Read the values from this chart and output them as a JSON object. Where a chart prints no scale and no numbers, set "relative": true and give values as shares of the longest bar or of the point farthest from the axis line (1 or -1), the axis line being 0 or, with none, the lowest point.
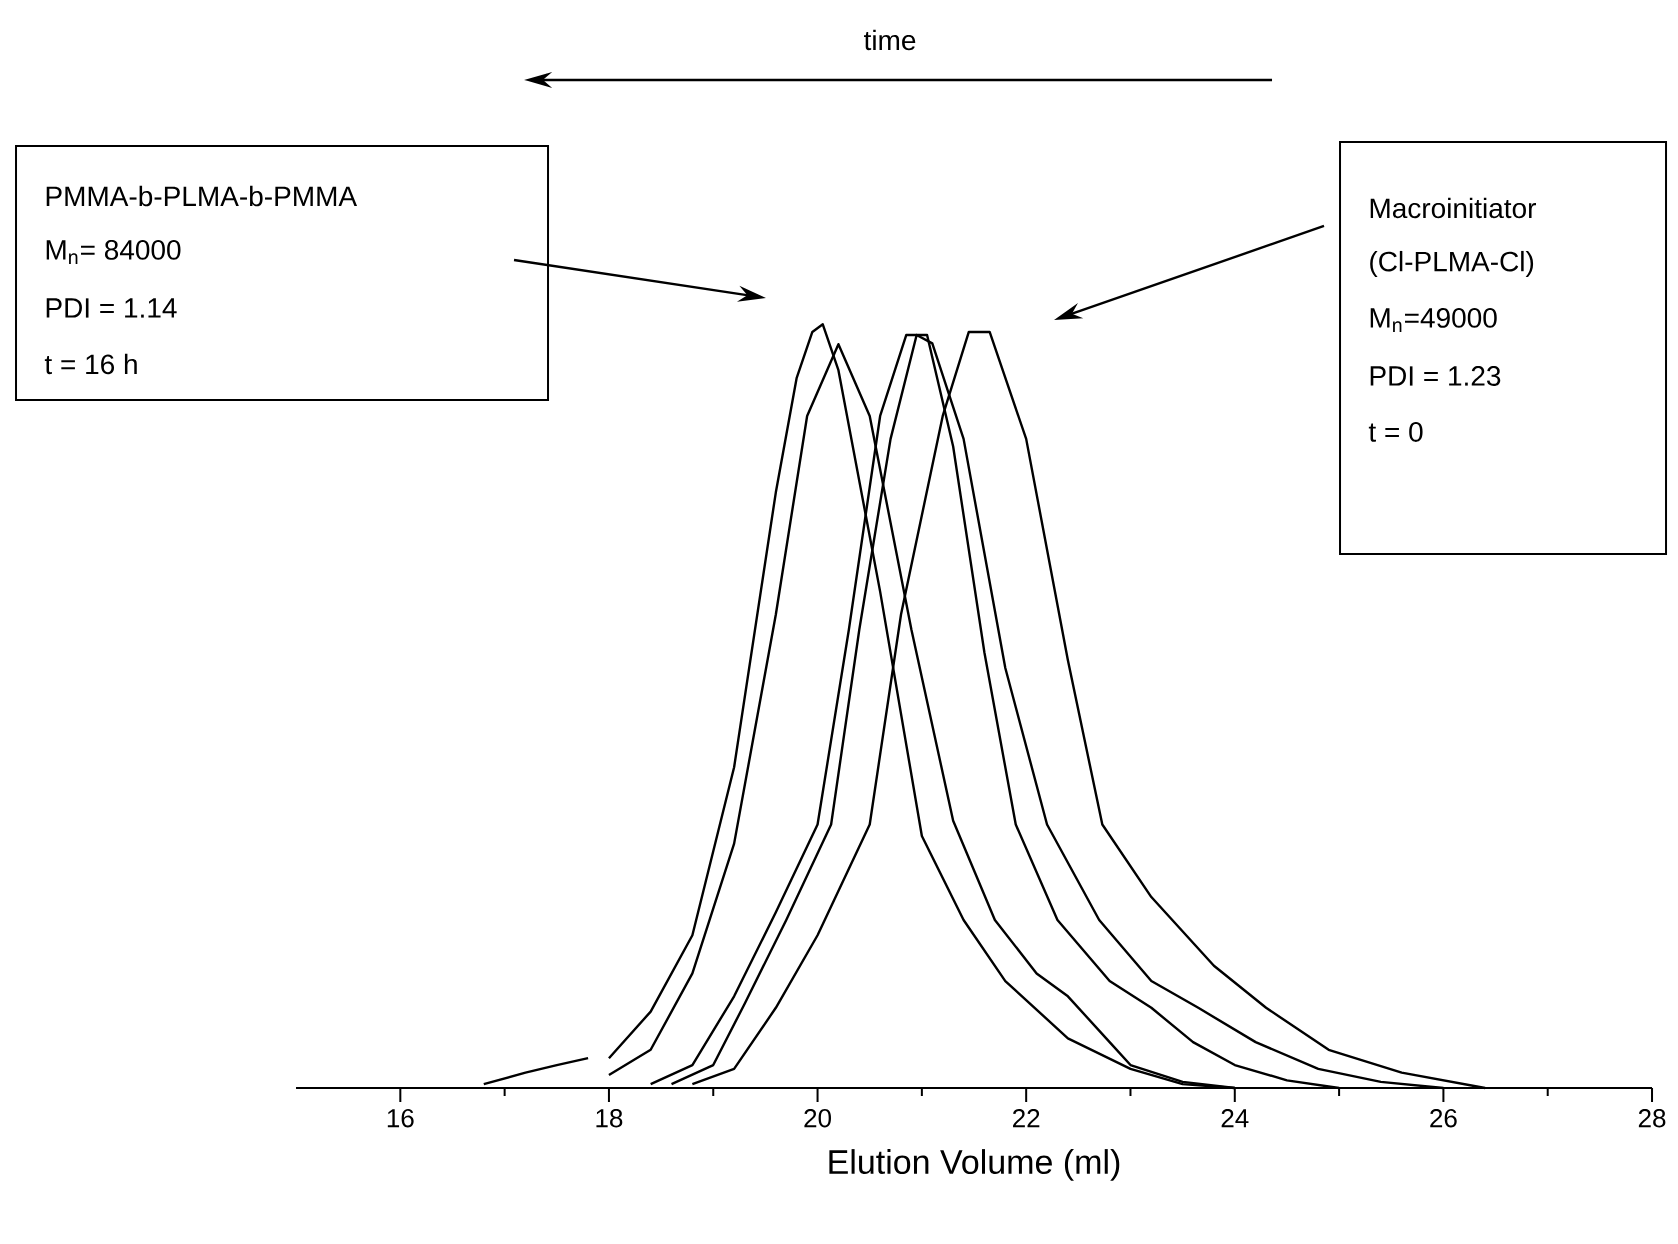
{
  "chart_data": {
    "type": "line",
    "relative": true,
    "xlabel": "Elution Volume (ml)",
    "xlim": [
      15,
      28
    ],
    "xticks": [
      16,
      18,
      20,
      22,
      24,
      26,
      28
    ],
    "grid": false,
    "marker": "none",
    "line_style": "solid",
    "series": [
      {
        "color": "#000000",
        "x": [
          16.8,
          17.2,
          17.5,
          17.8,
          17.9,
          18.0,
          18.4,
          18.8,
          19.2,
          19.6,
          19.8,
          19.95,
          20.05,
          20.2,
          20.6,
          21.0,
          21.4,
          21.8,
          22.4,
          23.0,
          23.5,
          24.0
        ],
        "values": [
          0.005,
          0.02,
          0.03,
          0.039,
          null,
          0.039,
          0.1,
          0.2,
          0.42,
          0.78,
          0.93,
          0.99,
          1.0,
          0.94,
          0.65,
          0.33,
          0.22,
          0.14,
          0.065,
          0.025,
          0.005,
          0
        ]
      },
      {
        "color": "#000000",
        "x": [
          18.0,
          18.4,
          18.8,
          19.2,
          19.6,
          19.9,
          20.2,
          20.5,
          20.9,
          21.3,
          21.7,
          22.1,
          22.4,
          22.8,
          23.0,
          23.5,
          24.0
        ],
        "values": [
          0.017,
          0.05,
          0.15,
          0.32,
          0.62,
          0.88,
          0.974,
          0.88,
          0.6,
          0.35,
          0.22,
          0.15,
          0.12,
          0.06,
          0.03,
          0.008,
          0
        ]
      },
      {
        "color": "#000000",
        "x": [
          18.4,
          18.8,
          19.2,
          19.6,
          20.0,
          20.3,
          20.6,
          20.85,
          21.05,
          21.3,
          21.6,
          21.9,
          22.3,
          22.8,
          23.2,
          23.6,
          24.0,
          24.5,
          25.0
        ],
        "values": [
          0.005,
          0.03,
          0.12,
          0.23,
          0.345,
          0.6,
          0.88,
          0.986,
          0.986,
          0.84,
          0.57,
          0.345,
          0.22,
          0.14,
          0.105,
          0.06,
          0.03,
          0.01,
          0
        ]
      },
      {
        "color": "#000000",
        "x": [
          18.6,
          19.0,
          19.3,
          19.7,
          20.13,
          20.4,
          20.7,
          20.95,
          21.1,
          21.4,
          21.8,
          22.2,
          22.7,
          23.2,
          23.65,
          24.2,
          24.8,
          25.4,
          26.0
        ],
        "values": [
          0.005,
          0.03,
          0.11,
          0.22,
          0.345,
          0.6,
          0.85,
          0.986,
          0.975,
          0.85,
          0.55,
          0.345,
          0.22,
          0.14,
          0.105,
          0.06,
          0.025,
          0.008,
          0
        ]
      },
      {
        "color": "#000000",
        "x": [
          18.8,
          19.2,
          19.6,
          20.0,
          20.5,
          20.8,
          21.2,
          21.45,
          21.65,
          22.0,
          22.4,
          22.73,
          23.2,
          23.8,
          24.3,
          24.9,
          25.6,
          26.4
        ],
        "values": [
          0.005,
          0.025,
          0.105,
          0.2,
          0.345,
          0.62,
          0.88,
          0.99,
          0.99,
          0.85,
          0.56,
          0.345,
          0.25,
          0.16,
          0.105,
          0.05,
          0.02,
          0
        ]
      }
    ],
    "annotations": [
      "PMMA-b-PLMA-b-PMMA",
      "M$_{n}$= 84000",
      "PDI = 1.14",
      "t = 16 h",
      "Macroinitiator",
      "(Cl-PLMA-Cl)",
      "M$_{n}$=49000",
      "PDI = 1.23",
      "t = 0",
      "time"
    ]
  }
}
